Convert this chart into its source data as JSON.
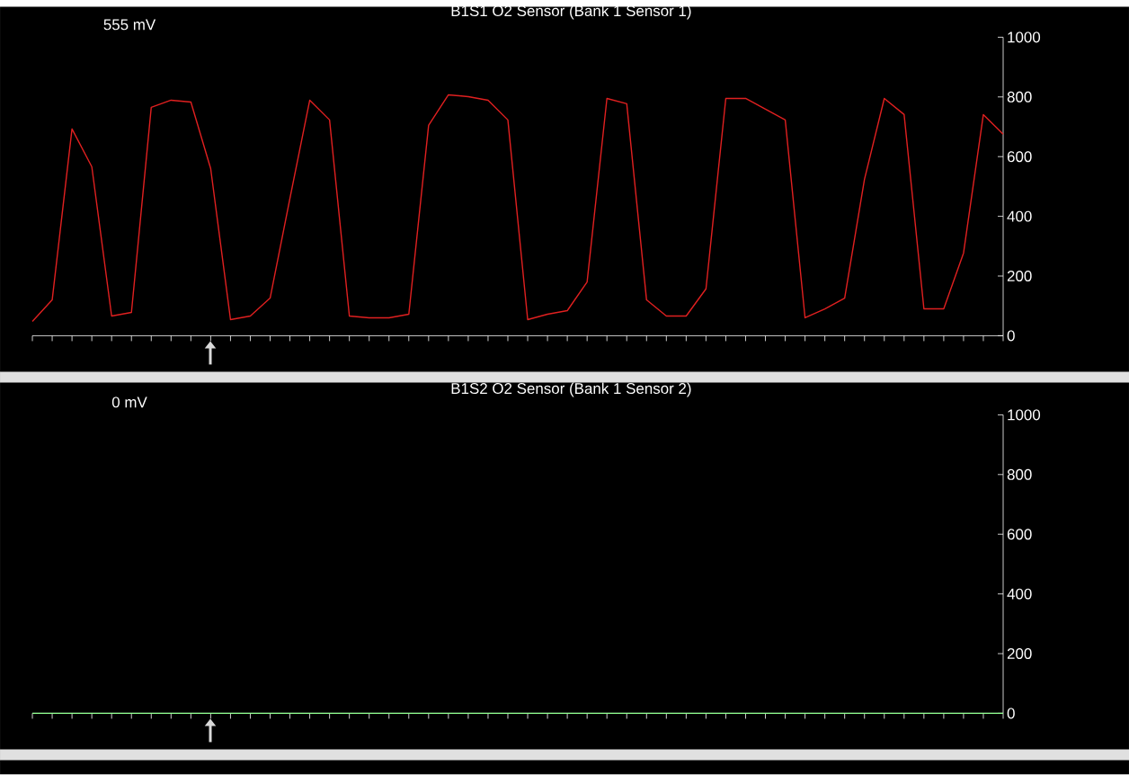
{
  "chart_data": [
    {
      "type": "line",
      "title": "B1S1 O2 Sensor (Bank 1 Sensor 1)",
      "annotations": [
        "555 mV"
      ],
      "categories": [
        null,
        null,
        null,
        null,
        null,
        null,
        null,
        null,
        null,
        null,
        null,
        null,
        null,
        null,
        null,
        null,
        null,
        null,
        null,
        null,
        null,
        null,
        null,
        null,
        null,
        null,
        null,
        null,
        null,
        null,
        null,
        null,
        null,
        null,
        null,
        null,
        null,
        null,
        null,
        null,
        null,
        null,
        null,
        null,
        null,
        null,
        null,
        null,
        null,
        null
      ],
      "series": [
        {
          "color": "#e02020",
          "values": [
            48,
            120,
            693,
            566,
            66,
            78,
            765,
            789,
            783,
            560,
            54,
            66,
            126,
            460,
            789,
            723,
            66,
            60,
            60,
            72,
            705,
            807,
            801,
            789,
            723,
            54,
            72,
            84,
            180,
            795,
            777,
            120,
            66,
            66,
            157,
            795,
            795,
            759,
            723,
            60,
            90,
            126,
            524,
            795,
            741,
            90,
            90,
            277,
            741,
            675
          ]
        }
      ],
      "ylim": [
        0,
        1000
      ],
      "yticks": [
        0,
        200,
        400,
        600,
        800,
        1000
      ]
    },
    {
      "type": "line",
      "title": "B1S2 O2 Sensor (Bank 1 Sensor 2)",
      "annotations": [
        "0 mV"
      ],
      "categories": [
        null,
        null,
        null,
        null,
        null,
        null,
        null,
        null,
        null,
        null,
        null,
        null,
        null,
        null,
        null,
        null,
        null,
        null,
        null,
        null,
        null,
        null,
        null,
        null,
        null,
        null,
        null,
        null,
        null,
        null,
        null,
        null,
        null,
        null,
        null,
        null,
        null,
        null,
        null,
        null,
        null,
        null,
        null,
        null,
        null,
        null,
        null,
        null,
        null,
        null
      ],
      "series": [
        {
          "color": "#90ff90",
          "values": [
            0,
            0,
            0,
            0,
            0,
            0,
            0,
            0,
            0,
            0,
            0,
            0,
            0,
            0,
            0,
            0,
            0,
            0,
            0,
            0,
            0,
            0,
            0,
            0,
            0,
            0,
            0,
            0,
            0,
            0,
            0,
            0,
            0,
            0,
            0,
            0,
            0,
            0,
            0,
            0,
            0,
            0,
            0,
            0,
            0,
            0,
            0,
            0,
            0,
            0
          ]
        }
      ],
      "ylim": [
        0,
        1000
      ],
      "yticks": [
        0,
        200,
        400,
        600,
        800,
        1000
      ]
    }
  ]
}
